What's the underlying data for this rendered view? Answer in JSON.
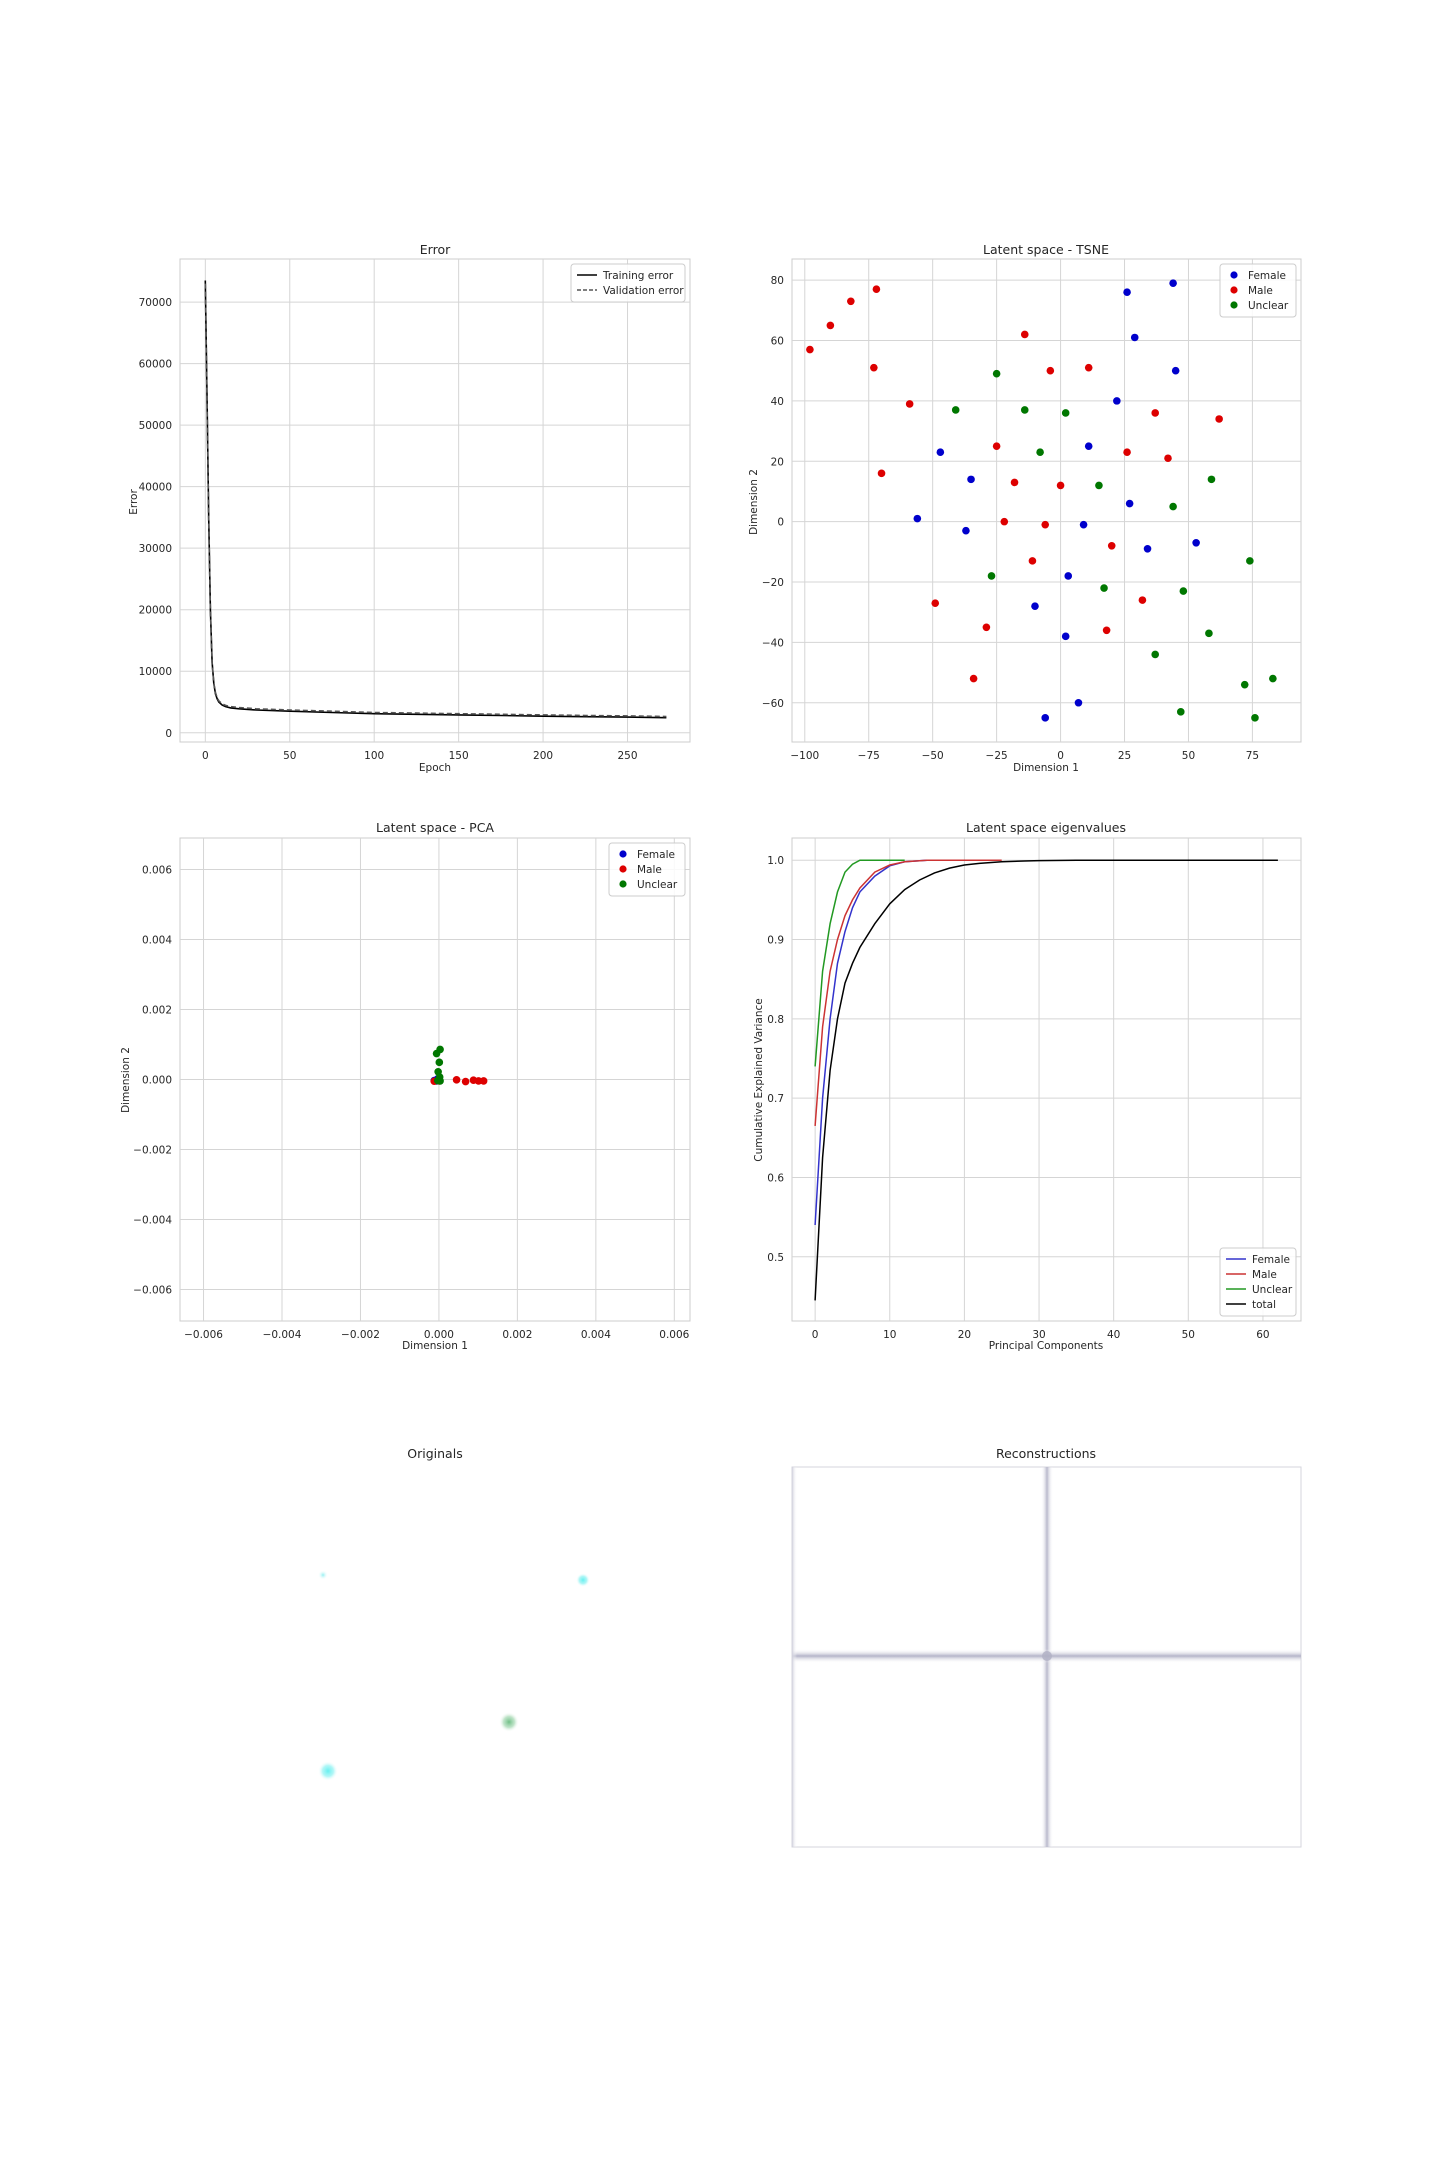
{
  "chart_data": [
    {
      "id": "error",
      "type": "line",
      "title": "Error",
      "xlabel": "Epoch",
      "ylabel": "Error",
      "xlim": [
        -15,
        287
      ],
      "ylim": [
        -1500,
        77000
      ],
      "xticks": [
        0,
        50,
        100,
        150,
        200,
        250
      ],
      "yticks": [
        0,
        10000,
        20000,
        30000,
        40000,
        50000,
        60000,
        70000
      ],
      "grid": true,
      "legend": "top-right",
      "series": [
        {
          "name": "Training error",
          "color": "#000000",
          "dash": "solid",
          "x": [
            0,
            1,
            2,
            3,
            4,
            5,
            6,
            7,
            8,
            10,
            12,
            15,
            20,
            30,
            50,
            75,
            100,
            125,
            150,
            175,
            200,
            225,
            250,
            273
          ],
          "y": [
            73500,
            55000,
            35000,
            20000,
            11500,
            8000,
            6300,
            5500,
            5000,
            4500,
            4250,
            4050,
            3900,
            3700,
            3500,
            3300,
            3100,
            3000,
            2900,
            2800,
            2700,
            2620,
            2550,
            2450
          ]
        },
        {
          "name": "Validation error",
          "color": "#555555",
          "dash": "dashed",
          "x": [
            0,
            1,
            2,
            3,
            4,
            5,
            6,
            7,
            8,
            10,
            12,
            15,
            20,
            30,
            50,
            75,
            100,
            125,
            150,
            175,
            200,
            225,
            250,
            273
          ],
          "y": [
            73000,
            54000,
            34500,
            19800,
            11300,
            8100,
            6500,
            5700,
            5200,
            4700,
            4450,
            4250,
            4100,
            3900,
            3700,
            3500,
            3300,
            3200,
            3100,
            3000,
            2900,
            2800,
            2750,
            2650
          ]
        }
      ]
    },
    {
      "id": "tsne",
      "type": "scatter",
      "title": "Latent space - TSNE",
      "xlabel": "Dimension 1",
      "ylabel": "Dimension 2",
      "xlim": [
        -105,
        94
      ],
      "ylim": [
        -73,
        87
      ],
      "xticks": [
        -100,
        -75,
        -50,
        -25,
        0,
        25,
        50,
        75
      ],
      "yticks": [
        -60,
        -40,
        -20,
        0,
        20,
        40,
        60,
        80
      ],
      "grid": true,
      "legend": "top-right",
      "series": [
        {
          "name": "Female",
          "color": "#0000cc",
          "points": [
            [
              44,
              79
            ],
            [
              26,
              76
            ],
            [
              29,
              61
            ],
            [
              45,
              50
            ],
            [
              22,
              40
            ],
            [
              -47,
              23
            ],
            [
              11,
              25
            ],
            [
              -35,
              14
            ],
            [
              27,
              6
            ],
            [
              -56,
              1
            ],
            [
              9,
              -1
            ],
            [
              -37,
              -3
            ],
            [
              53,
              -7
            ],
            [
              34,
              -9
            ],
            [
              3,
              -18
            ],
            [
              -10,
              -28
            ],
            [
              2,
              -38
            ],
            [
              7,
              -60
            ],
            [
              -6,
              -65
            ]
          ]
        },
        {
          "name": "Male",
          "color": "#dd0000",
          "points": [
            [
              -72,
              77
            ],
            [
              -82,
              73
            ],
            [
              -90,
              65
            ],
            [
              -98,
              57
            ],
            [
              -14,
              62
            ],
            [
              -73,
              51
            ],
            [
              -4,
              50
            ],
            [
              11,
              51
            ],
            [
              -59,
              39
            ],
            [
              37,
              36
            ],
            [
              62,
              34
            ],
            [
              -25,
              25
            ],
            [
              26,
              23
            ],
            [
              42,
              21
            ],
            [
              -70,
              16
            ],
            [
              -18,
              13
            ],
            [
              0,
              12
            ],
            [
              -22,
              0
            ],
            [
              -6,
              -1
            ],
            [
              20,
              -8
            ],
            [
              -11,
              -13
            ],
            [
              32,
              -26
            ],
            [
              -49,
              -27
            ],
            [
              18,
              -36
            ],
            [
              -29,
              -35
            ],
            [
              -34,
              -52
            ]
          ]
        },
        {
          "name": "Unclear",
          "color": "#007700",
          "points": [
            [
              -25,
              49
            ],
            [
              -41,
              37
            ],
            [
              -14,
              37
            ],
            [
              2,
              36
            ],
            [
              -8,
              23
            ],
            [
              15,
              12
            ],
            [
              59,
              14
            ],
            [
              44,
              5
            ],
            [
              74,
              -13
            ],
            [
              -27,
              -18
            ],
            [
              17,
              -22
            ],
            [
              48,
              -23
            ],
            [
              58,
              -37
            ],
            [
              37,
              -44
            ],
            [
              72,
              -54
            ],
            [
              83,
              -52
            ],
            [
              47,
              -63
            ],
            [
              76,
              -65
            ]
          ]
        }
      ]
    },
    {
      "id": "pca",
      "type": "scatter",
      "title": "Latent space - PCA",
      "xlabel": "Dimension 1",
      "ylabel": "Dimension 2",
      "xlim": [
        -0.0066,
        0.0064
      ],
      "ylim": [
        -0.0069,
        0.0069
      ],
      "xticks": [
        -0.006,
        -0.004,
        -0.002,
        0.0,
        0.002,
        0.004,
        0.006
      ],
      "yticks": [
        -0.006,
        -0.004,
        -0.002,
        0.0,
        0.002,
        0.004,
        0.006
      ],
      "xtick_labels": [
        "−0.006",
        "−0.004",
        "−0.002",
        "0.000",
        "0.002",
        "0.004",
        "0.006"
      ],
      "ytick_labels": [
        "−0.006",
        "−0.004",
        "−0.002",
        "0.000",
        "0.002",
        "0.004",
        "0.006"
      ],
      "grid": true,
      "legend": "top-right",
      "series": [
        {
          "name": "Female",
          "color": "#0000cc",
          "points": [
            [
              -0.00012,
              -3e-05
            ],
            [
              -6e-05,
              -4e-05
            ],
            [
              0.0,
              -2e-05
            ],
            [
              -3e-05,
              2e-05
            ]
          ]
        },
        {
          "name": "Male",
          "color": "#dd0000",
          "points": [
            [
              0.00045,
              -1e-05
            ],
            [
              0.00068,
              -6e-05
            ],
            [
              0.00088,
              -2e-05
            ],
            [
              0.00101,
              -4e-05
            ],
            [
              0.00114,
              -4e-05
            ],
            [
              -0.00012,
              -5e-05
            ],
            [
              1e-05,
              -4e-05
            ]
          ]
        },
        {
          "name": "Unclear",
          "color": "#007700",
          "points": [
            [
              3e-05,
              0.00086
            ],
            [
              -6e-05,
              0.00074
            ],
            [
              1e-05,
              0.00049
            ],
            [
              -2e-05,
              0.00022
            ],
            [
              2e-05,
              7e-05
            ],
            [
              -3e-05,
              -3e-05
            ],
            [
              3e-05,
              -4e-05
            ]
          ]
        }
      ]
    },
    {
      "id": "eigen",
      "type": "line",
      "title": "Latent space eigenvalues",
      "xlabel": "Principal Components",
      "ylabel": "Cumulative Explained Variance",
      "xlim": [
        -3.1,
        65.1
      ],
      "ylim": [
        0.419,
        1.028
      ],
      "xticks": [
        0,
        10,
        20,
        30,
        40,
        50,
        60
      ],
      "yticks": [
        0.5,
        0.6,
        0.7,
        0.8,
        0.9,
        1.0
      ],
      "grid": true,
      "legend": "bottom-right",
      "series": [
        {
          "name": "Female",
          "color": "#3333cc",
          "x": [
            0,
            1,
            2,
            3,
            4,
            5,
            6,
            8,
            10,
            12,
            15,
            18
          ],
          "y": [
            0.54,
            0.7,
            0.8,
            0.87,
            0.91,
            0.94,
            0.96,
            0.98,
            0.993,
            0.998,
            1.0,
            1.0
          ]
        },
        {
          "name": "Male",
          "color": "#cc3333",
          "x": [
            0,
            1,
            2,
            3,
            4,
            5,
            6,
            8,
            10,
            12,
            15,
            18,
            21,
            25
          ],
          "y": [
            0.665,
            0.79,
            0.86,
            0.9,
            0.93,
            0.95,
            0.965,
            0.985,
            0.994,
            0.998,
            1.0,
            1.0,
            1.0,
            1.0
          ]
        },
        {
          "name": "Unclear",
          "color": "#229922",
          "x": [
            0,
            1,
            2,
            3,
            4,
            5,
            6,
            7,
            8,
            9,
            10,
            11,
            12
          ],
          "y": [
            0.74,
            0.86,
            0.92,
            0.96,
            0.985,
            0.995,
            1.0,
            1.0,
            1.0,
            1.0,
            1.0,
            1.0,
            1.0
          ]
        },
        {
          "name": "total",
          "color": "#000000",
          "x": [
            0,
            1,
            2,
            3,
            4,
            5,
            6,
            8,
            10,
            12,
            14,
            16,
            18,
            20,
            22,
            25,
            28,
            30,
            35,
            40,
            50,
            62
          ],
          "y": [
            0.445,
            0.625,
            0.735,
            0.8,
            0.845,
            0.87,
            0.89,
            0.92,
            0.945,
            0.963,
            0.975,
            0.984,
            0.99,
            0.994,
            0.996,
            0.998,
            0.999,
            0.9995,
            1.0,
            1.0,
            1.0,
            1.0
          ]
        }
      ]
    }
  ],
  "images": {
    "originals": {
      "title": "Originals"
    },
    "reconstructions": {
      "title": "Reconstructions"
    }
  }
}
